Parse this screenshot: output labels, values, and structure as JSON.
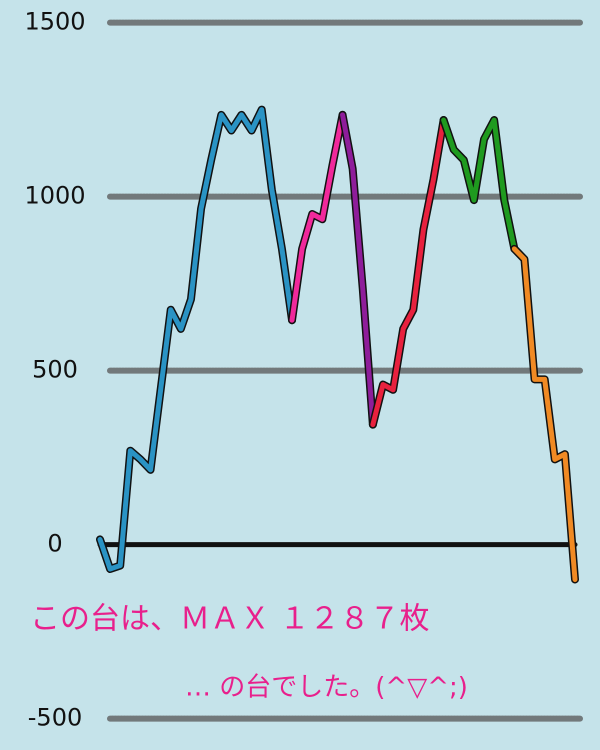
{
  "chart_data": {
    "type": "line",
    "annotations": [
      "この台は、ＭＡＸ １２８７枚",
      "… の台でした。(^▽^;)"
    ],
    "categories": [
      null,
      null,
      null,
      null,
      null,
      null,
      null,
      null,
      null,
      null,
      null,
      null,
      null,
      null,
      null,
      null,
      null,
      null,
      null,
      null,
      null,
      null,
      null,
      null,
      null,
      null,
      null,
      null,
      null,
      null,
      null,
      null,
      null,
      null,
      null,
      null,
      null,
      null,
      null,
      null,
      null,
      null,
      null,
      null,
      null,
      null,
      null,
      null
    ],
    "series": [
      {
        "color": "#2a93c4",
        "values": [
          15,
          -70,
          -60,
          270,
          245,
          215,
          445,
          675,
          620,
          705,
          965,
          1105,
          1235,
          1190,
          1235,
          1190,
          1250,
          1020,
          850,
          645,
          null,
          null,
          null,
          null,
          null,
          null,
          null,
          null,
          null,
          null,
          null,
          null,
          null,
          null,
          null,
          null,
          null,
          null,
          null,
          null,
          null,
          null,
          null,
          null,
          null,
          null,
          null,
          null
        ]
      },
      {
        "color": "#f0299b",
        "values": [
          null,
          null,
          null,
          null,
          null,
          null,
          null,
          null,
          null,
          null,
          null,
          null,
          null,
          null,
          null,
          null,
          null,
          null,
          null,
          645,
          850,
          950,
          935,
          1090,
          1235,
          null,
          null,
          null,
          null,
          null,
          null,
          null,
          null,
          null,
          null,
          null,
          null,
          null,
          null,
          null,
          null,
          null,
          null,
          null,
          null,
          null,
          null,
          null
        ]
      },
      {
        "color": "#8e1d9a",
        "values": [
          null,
          null,
          null,
          null,
          null,
          null,
          null,
          null,
          null,
          null,
          null,
          null,
          null,
          null,
          null,
          null,
          null,
          null,
          null,
          null,
          null,
          null,
          null,
          null,
          1235,
          1080,
          735,
          345,
          null,
          null,
          null,
          null,
          null,
          null,
          null,
          null,
          null,
          null,
          null,
          null,
          null,
          null,
          null,
          null,
          null,
          null,
          null,
          null
        ]
      },
      {
        "color": "#e8213e",
        "values": [
          null,
          null,
          null,
          null,
          null,
          null,
          null,
          null,
          null,
          null,
          null,
          null,
          null,
          null,
          null,
          null,
          null,
          null,
          null,
          null,
          null,
          null,
          null,
          null,
          null,
          null,
          null,
          345,
          460,
          445,
          620,
          675,
          905,
          1050,
          1220,
          null,
          null,
          null,
          null,
          null,
          null,
          null,
          null,
          null,
          null,
          null,
          null,
          null
        ]
      },
      {
        "color": "#1f9a1f",
        "values": [
          null,
          null,
          null,
          null,
          null,
          null,
          null,
          null,
          null,
          null,
          null,
          null,
          null,
          null,
          null,
          null,
          null,
          null,
          null,
          null,
          null,
          null,
          null,
          null,
          null,
          null,
          null,
          null,
          null,
          null,
          null,
          null,
          null,
          null,
          1220,
          1135,
          1105,
          990,
          1165,
          1220,
          990,
          850,
          null,
          null,
          null,
          null,
          null,
          null
        ]
      },
      {
        "color": "#f08a24",
        "values": [
          null,
          null,
          null,
          null,
          null,
          null,
          null,
          null,
          null,
          null,
          null,
          null,
          null,
          null,
          null,
          null,
          null,
          null,
          null,
          null,
          null,
          null,
          null,
          null,
          null,
          null,
          null,
          null,
          null,
          null,
          null,
          null,
          null,
          null,
          null,
          null,
          null,
          null,
          null,
          null,
          null,
          850,
          820,
          475,
          475,
          245,
          260,
          -100
        ]
      }
    ],
    "ylim": [
      -590,
      1565
    ],
    "yticks": [
      -500,
      0,
      500,
      1000,
      1500
    ],
    "grid": true
  }
}
